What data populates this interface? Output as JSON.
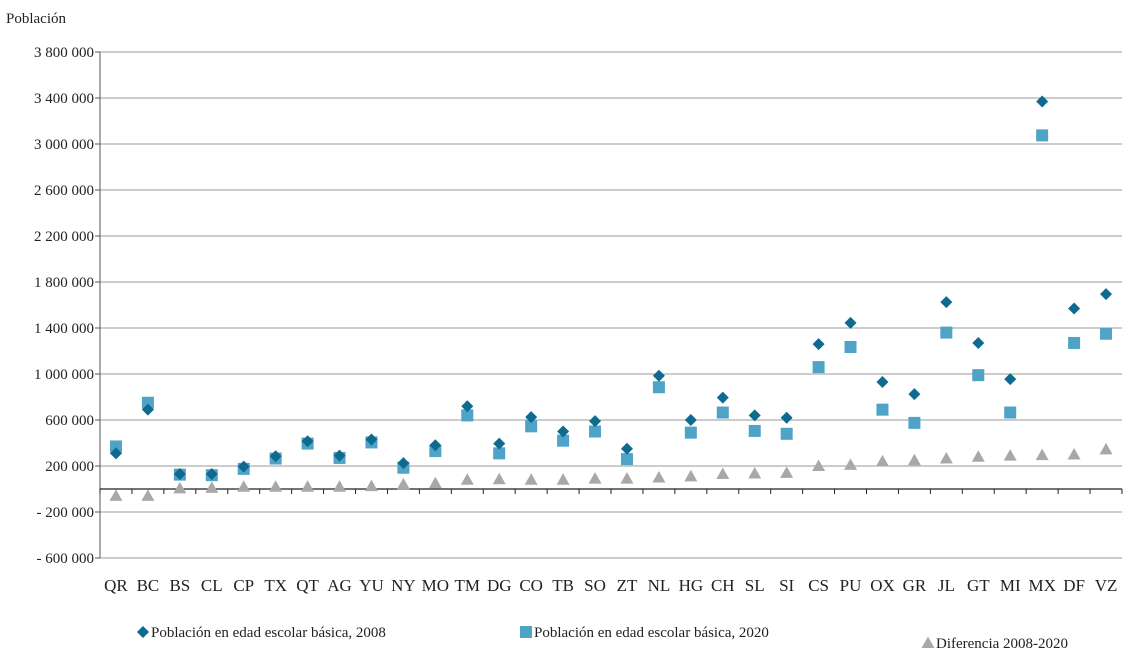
{
  "chart_data": {
    "type": "scatter",
    "ylabel": "Población",
    "ylim": [
      -700000,
      3800000
    ],
    "yticks": [
      3800000,
      3400000,
      3000000,
      2600000,
      2200000,
      1800000,
      1400000,
      1000000,
      600000,
      200000,
      -200000,
      -600000
    ],
    "ytick_labels": [
      "3 800 000",
      "3 400 000",
      "3 000 000",
      "2 600 000",
      "2 200 000",
      "1 800 000",
      "1 400 000",
      "1 000 000",
      "600 000",
      "200 000",
      "- 200 000",
      "- 600 000"
    ],
    "categories": [
      "QR",
      "BC",
      "BS",
      "CL",
      "CP",
      "TX",
      "QT",
      "AG",
      "YU",
      "NY",
      "MO",
      "TM",
      "DG",
      "CO",
      "TB",
      "SO",
      "ZT",
      "NL",
      "HG",
      "CH",
      "SL",
      "SI",
      "CS",
      "PU",
      "OX",
      "GR",
      "JL",
      "GT",
      "MI",
      "MX",
      "DF",
      "VZ"
    ],
    "grid": "horizontal",
    "legend_position": "bottom",
    "series": [
      {
        "name": "Población en edad escolar básica, 2008",
        "marker": "diamond",
        "color": "#0e6b8f",
        "values": [
          310000,
          690000,
          130000,
          130000,
          195000,
          285000,
          415000,
          290000,
          430000,
          225000,
          380000,
          720000,
          395000,
          625000,
          500000,
          590000,
          350000,
          985000,
          600000,
          795000,
          640000,
          620000,
          1260000,
          1445000,
          930000,
          825000,
          1625000,
          1270000,
          955000,
          3370000,
          1570000,
          1695000
        ]
      },
      {
        "name": "Población en edad escolar básica, 2020",
        "marker": "square",
        "color": "#4fa3c7",
        "values": [
          370000,
          750000,
          125000,
          120000,
          175000,
          265000,
          395000,
          270000,
          405000,
          185000,
          330000,
          640000,
          310000,
          545000,
          420000,
          500000,
          260000,
          885000,
          490000,
          665000,
          505000,
          480000,
          1060000,
          1235000,
          690000,
          575000,
          1360000,
          990000,
          665000,
          3075000,
          1270000,
          1350000
        ]
      },
      {
        "name": "Diferencia 2008-2020",
        "marker": "triangle",
        "color": "#a8a8a8",
        "values": [
          -60000,
          -60000,
          5000,
          10000,
          20000,
          20000,
          20000,
          20000,
          25000,
          40000,
          50000,
          80000,
          85000,
          80000,
          80000,
          90000,
          90000,
          100000,
          110000,
          130000,
          135000,
          140000,
          200000,
          210000,
          240000,
          250000,
          265000,
          280000,
          290000,
          295000,
          300000,
          345000
        ]
      }
    ]
  }
}
